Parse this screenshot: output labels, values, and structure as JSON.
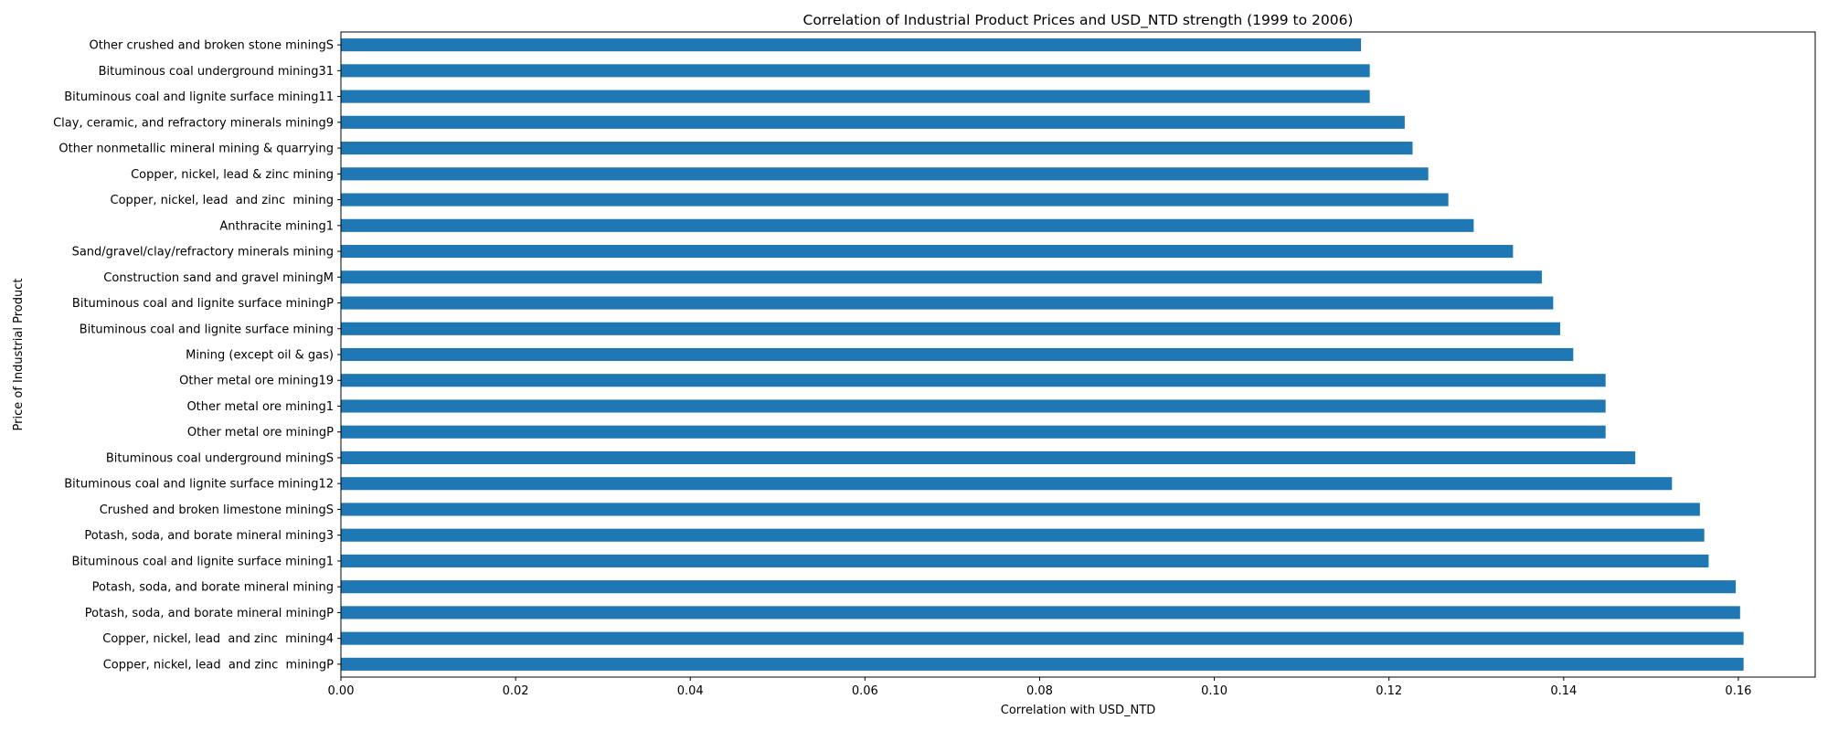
{
  "chart_data": {
    "type": "bar",
    "orientation": "horizontal",
    "title": "Correlation of Industrial Product Prices and USD_NTD strength (1999 to 2006)",
    "xlabel": "Correlation with USD_NTD",
    "ylabel": "Price of Industrial Product",
    "xlim": [
      0,
      0.1688
    ],
    "xticks": [
      0.0,
      0.02,
      0.04,
      0.06,
      0.08,
      0.1,
      0.12,
      0.14,
      0.16
    ],
    "xtick_labels": [
      "0.00",
      "0.02",
      "0.04",
      "0.06",
      "0.08",
      "0.10",
      "0.12",
      "0.14",
      "0.16"
    ],
    "grid": false,
    "bar_color": "#1f77b4",
    "categories": [
      "Other crushed and broken stone miningS",
      "Bituminous coal underground mining31",
      "Bituminous coal and lignite surface mining11",
      "Clay, ceramic, and refractory minerals mining9",
      "Other nonmetallic mineral mining & quarrying",
      "Copper, nickel, lead & zinc mining",
      "Copper, nickel, lead  and zinc  mining",
      "Anthracite mining1",
      "Sand/gravel/clay/refractory minerals mining",
      "Construction sand and gravel miningM",
      "Bituminous coal and lignite surface miningP",
      "Bituminous coal and lignite surface mining",
      "Mining (except oil & gas)",
      "Other metal ore mining19",
      "Other metal ore mining1",
      "Other metal ore miningP",
      "Bituminous coal underground miningS",
      "Bituminous coal and lignite surface mining12",
      "Crushed and broken limestone miningS",
      "Potash, soda, and borate mineral mining3",
      "Bituminous coal and lignite surface mining1",
      "Potash, soda, and borate mineral mining",
      "Potash, soda, and borate mineral miningP",
      "Copper, nickel, lead  and zinc  mining4",
      "Copper, nickel, lead  and zinc  miningP"
    ],
    "values": [
      0.1168,
      0.1178,
      0.1178,
      0.1218,
      0.1227,
      0.1245,
      0.1268,
      0.1297,
      0.1342,
      0.1375,
      0.1388,
      0.1396,
      0.1411,
      0.1448,
      0.1448,
      0.1448,
      0.1482,
      0.1524,
      0.1556,
      0.1561,
      0.1566,
      0.1597,
      0.1602,
      0.1606,
      0.1606
    ]
  }
}
